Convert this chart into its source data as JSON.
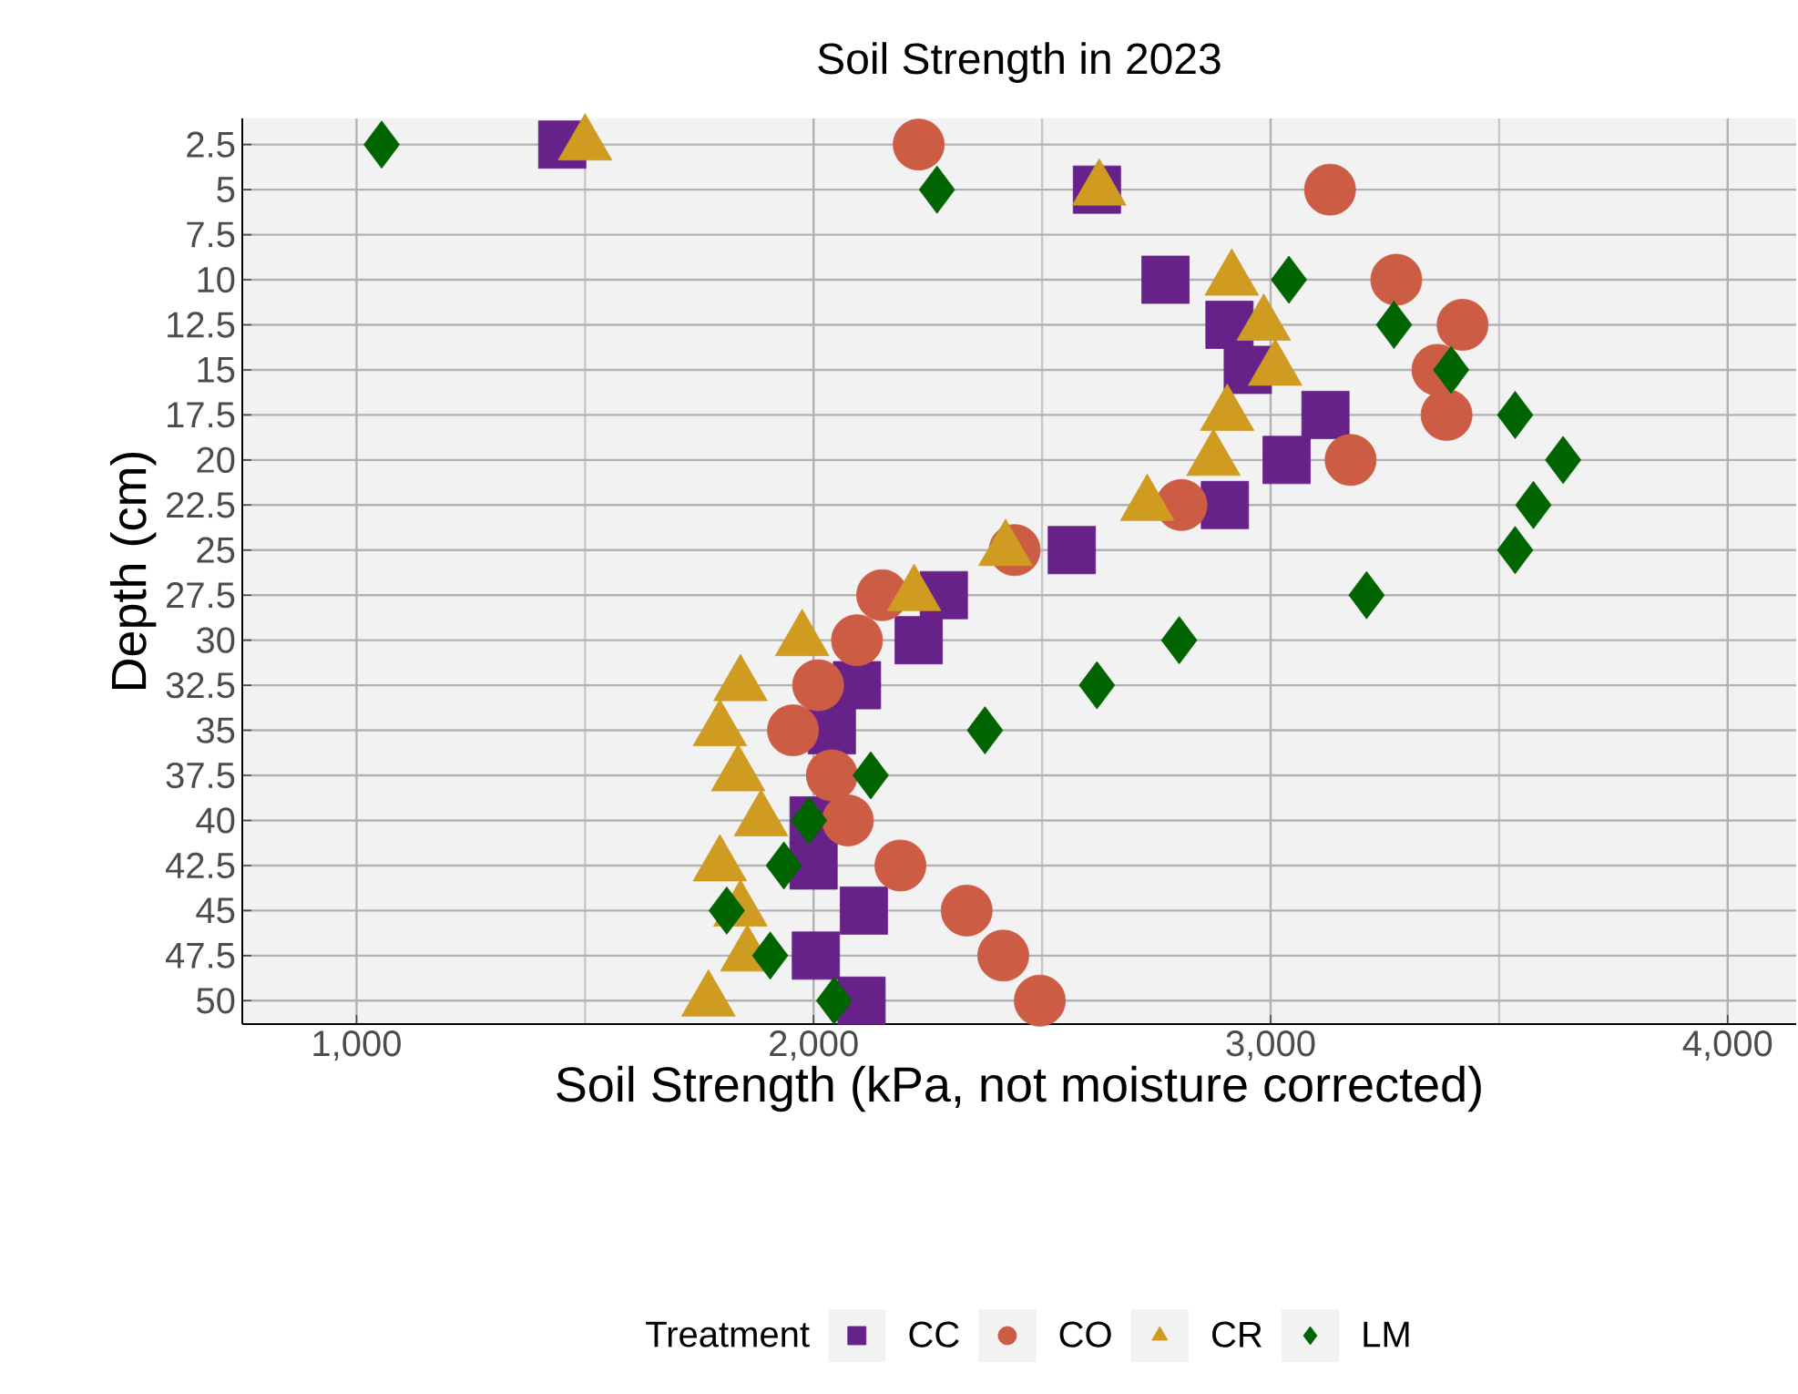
{
  "chart_data": {
    "type": "scatter",
    "title": "Soil Strength in 2023",
    "xlabel": "Soil Strength (kPa, not moisture corrected)",
    "ylabel": "Depth (cm)",
    "legend_title": "Treatment",
    "xlim": [
      750,
      4150
    ],
    "xticks": [
      {
        "value": 1000,
        "label": "1,000"
      },
      {
        "value": 2000,
        "label": "2,000"
      },
      {
        "value": 3000,
        "label": "3,000"
      },
      {
        "value": 4000,
        "label": "4,000"
      }
    ],
    "ylim": [
      51.3,
      1.05
    ],
    "yticks": [
      2.5,
      5,
      7.5,
      10,
      12.5,
      15,
      17.5,
      20,
      22.5,
      25,
      27.5,
      30,
      32.5,
      35,
      37.5,
      40,
      42.5,
      45,
      47.5,
      50
    ],
    "grid": true,
    "legend": "bottom",
    "series": [
      {
        "name": "CC",
        "color": "#662288",
        "marker": "square",
        "x": [
          1450,
          2620,
          2770,
          2910,
          2950,
          3120,
          3035,
          2900,
          2565,
          2285,
          2230,
          2095,
          2040,
          null,
          2000,
          2000,
          2110,
          2005,
          2105
        ],
        "values": [
          2.5,
          5,
          10,
          12.5,
          15,
          17.5,
          20,
          22.5,
          25,
          27.5,
          30,
          32.5,
          35,
          null,
          40,
          42.5,
          45,
          47.5,
          50
        ]
      },
      {
        "name": "CO",
        "color": "#cd5c45",
        "marker": "circle",
        "x": [
          2230,
          3130,
          3275,
          3420,
          3365,
          3385,
          3175,
          2805,
          2440,
          2150,
          2095,
          2010,
          1955,
          2040,
          2075,
          2190,
          2335,
          2415,
          2495
        ],
        "values": [
          2.5,
          5,
          10,
          12.5,
          15,
          17.5,
          20,
          22.5,
          25,
          27.5,
          30,
          32.5,
          35,
          37.5,
          40,
          42.5,
          45,
          47.5,
          50
        ]
      },
      {
        "name": "CR",
        "color": "#cf9b20",
        "marker": "triangle",
        "x": [
          1500,
          2625,
          2915,
          2985,
          3010,
          2905,
          2875,
          2730,
          2420,
          2220,
          1975,
          1840,
          1795,
          1835,
          1885,
          1795,
          1840,
          1855,
          1770
        ],
        "values": [
          2.5,
          5,
          10,
          12.5,
          15,
          17.5,
          20,
          22.5,
          25,
          27.5,
          30,
          32.5,
          35,
          37.5,
          40,
          42.5,
          45,
          47.5,
          50
        ]
      },
      {
        "name": "LM",
        "color": "#006400",
        "marker": "diamond",
        "x": [
          1055,
          2270,
          3040,
          3270,
          3395,
          3535,
          3640,
          3575,
          3535,
          3210,
          2800,
          2620,
          2375,
          2125,
          1990,
          1935,
          1810,
          1905,
          2045
        ],
        "values": [
          2.5,
          5,
          10,
          12.5,
          15,
          17.5,
          20,
          22.5,
          25,
          27.5,
          30,
          32.5,
          35,
          37.5,
          40,
          42.5,
          45,
          47.5,
          50
        ]
      }
    ]
  }
}
